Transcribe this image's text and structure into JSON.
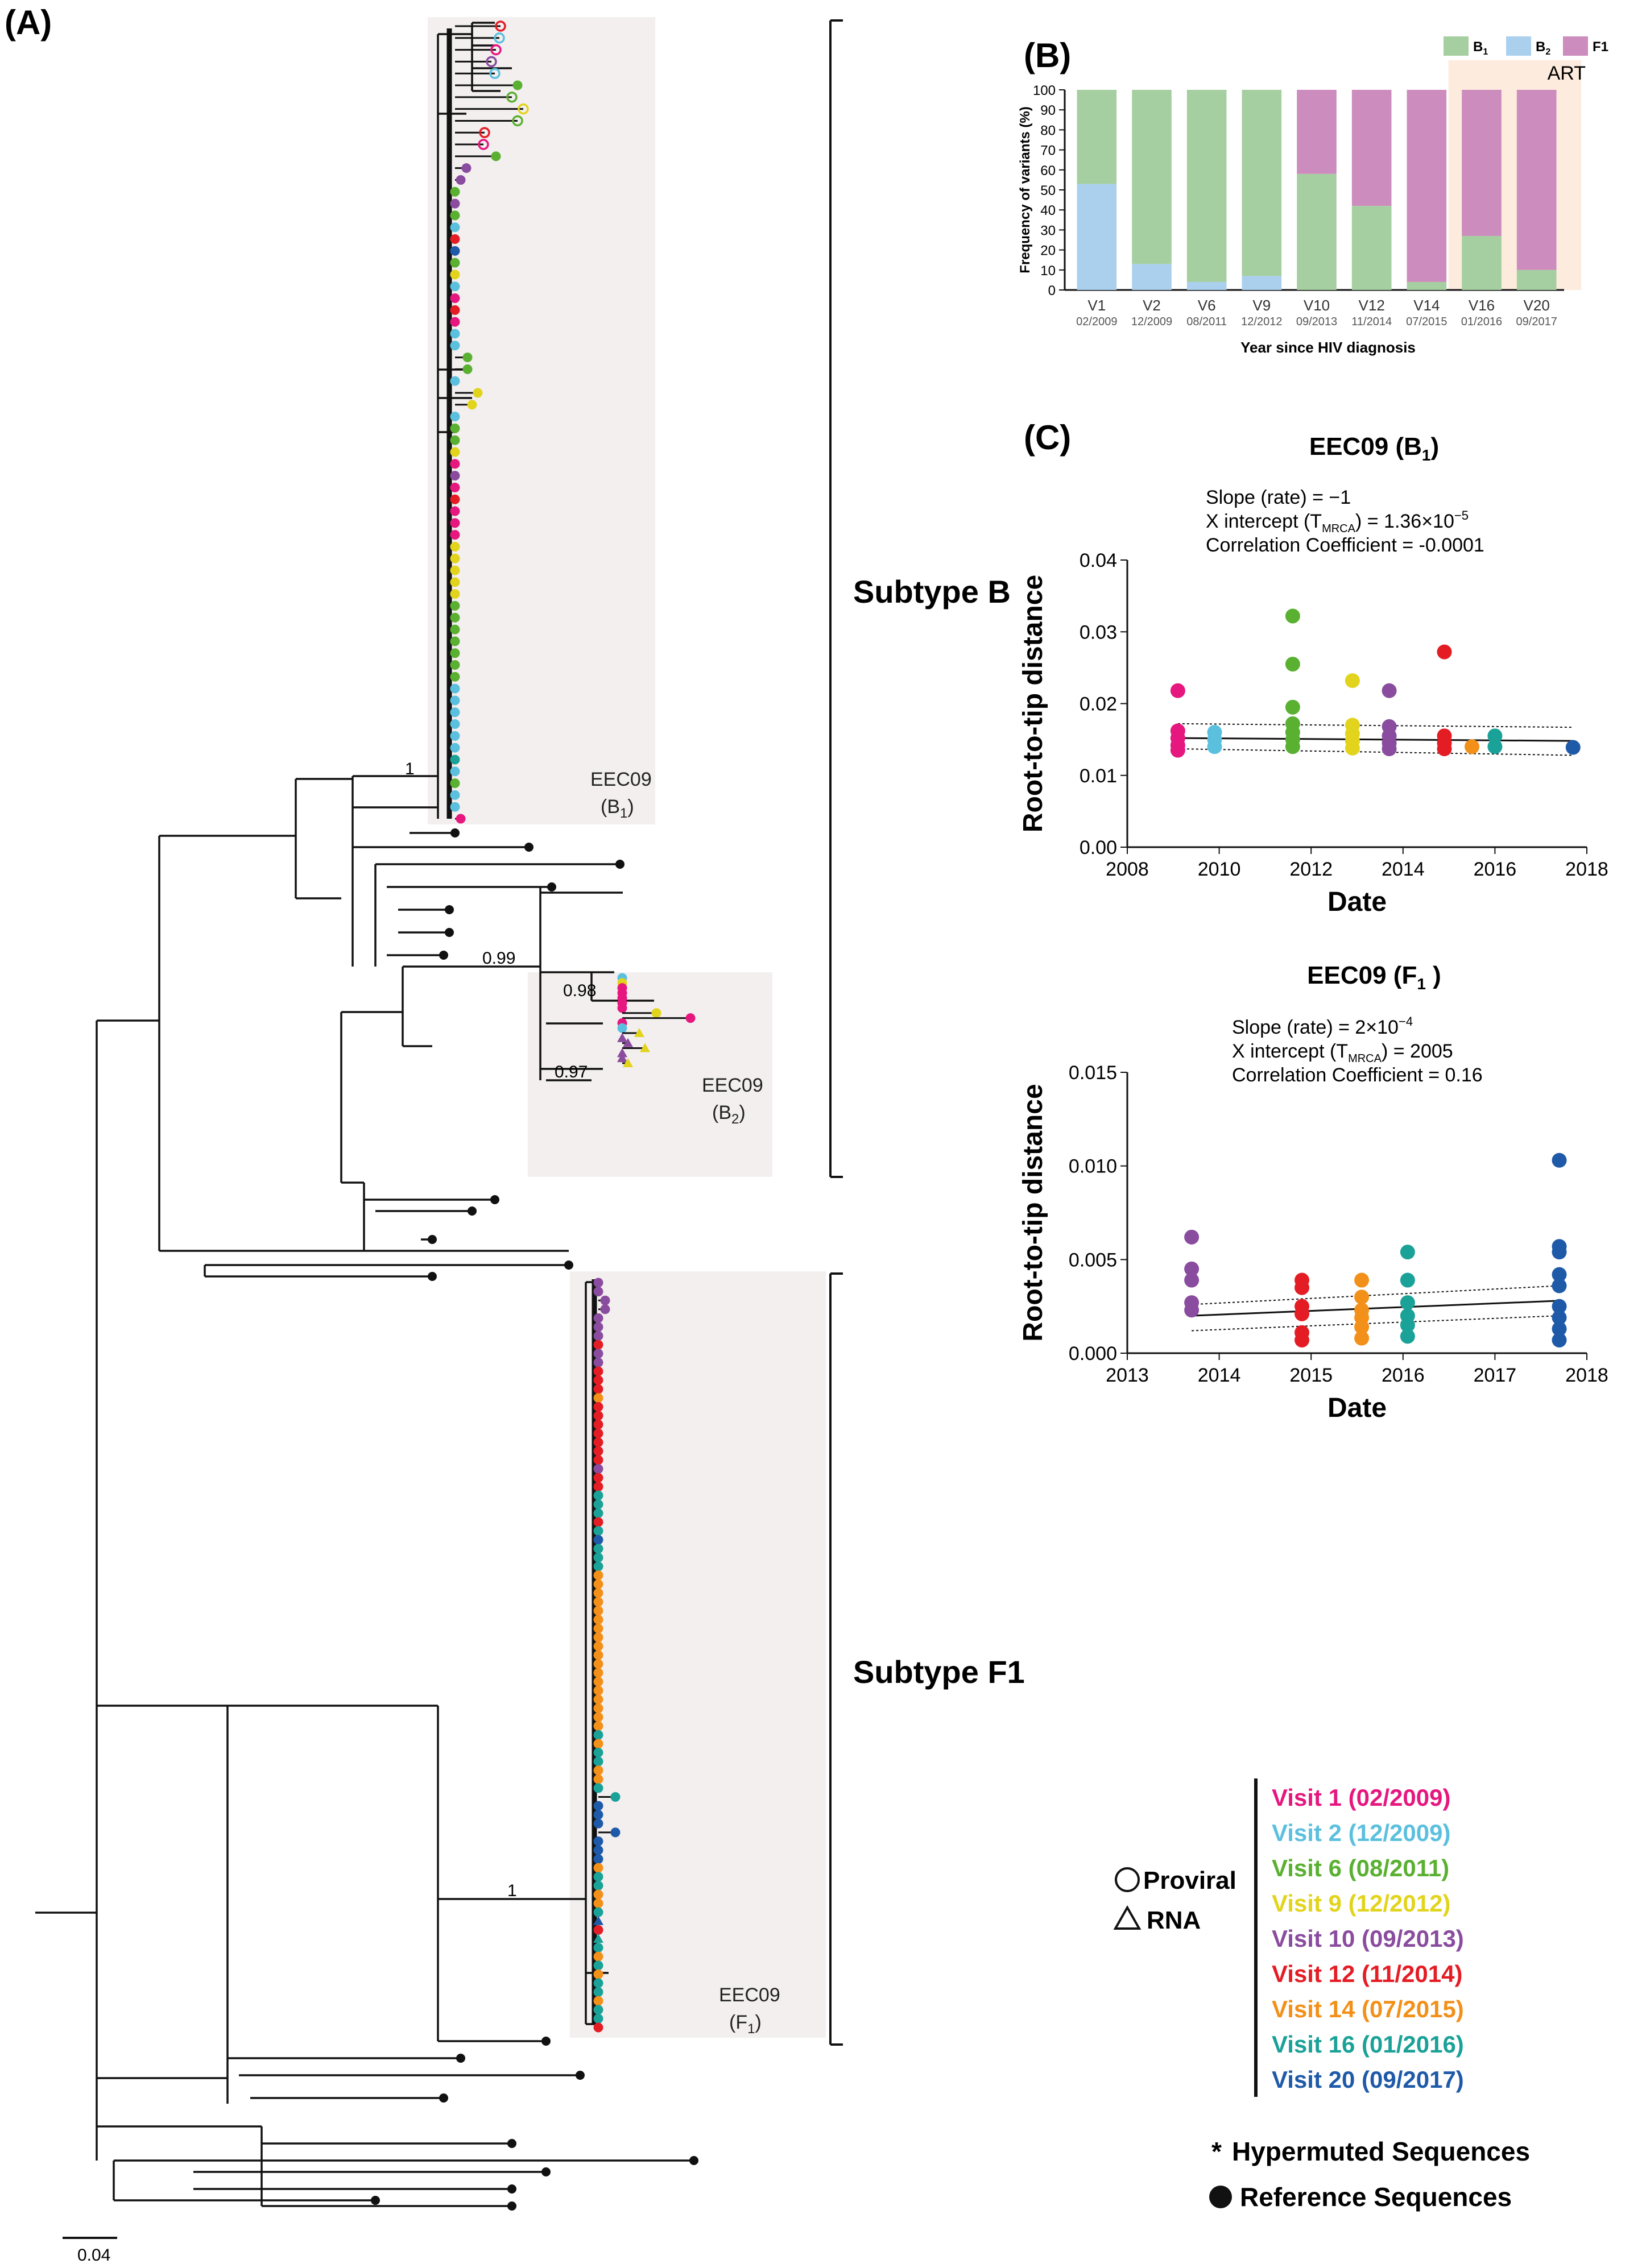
{
  "panels": {
    "a_label": "(A)",
    "b_label": "(B)",
    "c_label": "(C)"
  },
  "tree": {
    "subtype_b_label": "Subtype B",
    "subtype_f1_label": "Subtype F1",
    "clade_b1": {
      "name": "EEC09",
      "sub": "(B",
      "sub_index": "1",
      "close": ")"
    },
    "clade_b2": {
      "name": "EEC09",
      "sub": "(B",
      "sub_index": "2",
      "close": ")"
    },
    "clade_f1": {
      "name": "EEC09",
      "sub": "(F",
      "sub_index": "1",
      "close": ")"
    },
    "support_values": [
      "1",
      "0.99",
      "0.98",
      "0.97",
      "1"
    ],
    "scale_bar_label": "0.04"
  },
  "legend": {
    "proviral_label": "Proviral",
    "rna_label": "RNA",
    "hypermuted_label": "Hypermuted Sequences",
    "hypermuted_symbol": "*",
    "reference_label": "Reference Sequences",
    "visits": [
      {
        "label": "Visit 1 (02/2009)",
        "color": "#e6177f"
      },
      {
        "label": "Visit 2 (12/2009)",
        "color": "#5bc0de"
      },
      {
        "label": "Visit 6 (08/2011)",
        "color": "#5ab031"
      },
      {
        "label": "Visit 9 (12/2012)",
        "color": "#e2d41c"
      },
      {
        "label": "Visit 10 (09/2013)",
        "color": "#8a4c9e"
      },
      {
        "label": "Visit 12 (11/2014)",
        "color": "#e41d25"
      },
      {
        "label": "Visit 14 (07/2015)",
        "color": "#f29019"
      },
      {
        "label": "Visit 16 (01/2016)",
        "color": "#1aa198"
      },
      {
        "label": "Visit 20 (09/2017)",
        "color": "#1f5aa8"
      }
    ]
  },
  "chart_data": [
    {
      "type": "bar",
      "stacked": true,
      "ylabel": "Frequency of variants (%)",
      "xlabel": "Year since HIV diagnosis",
      "ylim": [
        0,
        100
      ],
      "yticks": [
        0,
        10,
        20,
        30,
        40,
        50,
        60,
        70,
        80,
        90,
        100
      ],
      "categories": [
        "V1",
        "V2",
        "V6",
        "V9",
        "V10",
        "V12",
        "V14",
        "V16",
        "V20"
      ],
      "category_dates": [
        "02/2009",
        "12/2009",
        "08/2011",
        "12/2012",
        "09/2013",
        "11/2014",
        "07/2015",
        "01/2016",
        "09/2017"
      ],
      "series": [
        {
          "name": "B",
          "sub": "2",
          "color": "#aad0ee",
          "values": [
            53,
            13,
            4,
            7,
            0,
            0,
            0,
            0,
            0
          ]
        },
        {
          "name": "B",
          "sub": "1",
          "color": "#a5cfa0",
          "values": [
            47,
            87,
            96,
            93,
            58,
            42,
            4,
            27,
            10
          ]
        },
        {
          "name": "F1",
          "sub": "",
          "color": "#cc8cbd",
          "values": [
            0,
            0,
            0,
            0,
            42,
            58,
            96,
            73,
            90
          ]
        }
      ],
      "legend_order": [
        "B1",
        "B2",
        "F1"
      ],
      "annotation": "ART",
      "annotation_color": "#fdebdd"
    },
    {
      "type": "scatter",
      "title": "EEC09 (B1)",
      "title_main": "EEC09 (B",
      "title_sub": "1",
      "title_close": ")",
      "xlabel": "Date",
      "ylabel": "Root-to-tip distance",
      "xlim": [
        2008,
        2018
      ],
      "ylim": [
        0,
        0.04
      ],
      "xticks": [
        "2008",
        "2010",
        "2012",
        "2014",
        "2016",
        "2018"
      ],
      "yticks": [
        "0.00",
        "0.01",
        "0.02",
        "0.03",
        "0.04"
      ],
      "stats": {
        "slope_line": "Slope (rate) =  −1",
        "xint_prefix": "X intercept (T",
        "xint_sub": "MRCA",
        "xint_suffix": ") = 1.36×10",
        "xint_exp": "−5",
        "corr_line": "Correlation Coefficient = -0.0001"
      },
      "regression": {
        "x0": 2009.1,
        "y0": 0.0152,
        "x1": 2017.7,
        "y1": 0.0148
      },
      "ci_upper": {
        "x0": 2009.1,
        "y0": 0.0172,
        "x1": 2017.7,
        "y1": 0.0167
      },
      "ci_lower": {
        "x0": 2009.1,
        "y0": 0.0137,
        "x1": 2017.7,
        "y1": 0.0128
      },
      "points": [
        {
          "x": 2009.1,
          "y": 0.0218,
          "visit": 0
        },
        {
          "x": 2009.1,
          "y": 0.0162,
          "visit": 0
        },
        {
          "x": 2009.1,
          "y": 0.0152,
          "visit": 0
        },
        {
          "x": 2009.1,
          "y": 0.0142,
          "visit": 0
        },
        {
          "x": 2009.1,
          "y": 0.0135,
          "visit": 0
        },
        {
          "x": 2009.9,
          "y": 0.016,
          "visit": 1
        },
        {
          "x": 2009.9,
          "y": 0.015,
          "visit": 1
        },
        {
          "x": 2009.9,
          "y": 0.014,
          "visit": 1
        },
        {
          "x": 2011.6,
          "y": 0.0322,
          "visit": 2
        },
        {
          "x": 2011.6,
          "y": 0.0255,
          "visit": 2
        },
        {
          "x": 2011.6,
          "y": 0.0195,
          "visit": 2
        },
        {
          "x": 2011.6,
          "y": 0.0172,
          "visit": 2
        },
        {
          "x": 2011.6,
          "y": 0.016,
          "visit": 2
        },
        {
          "x": 2011.6,
          "y": 0.015,
          "visit": 2
        },
        {
          "x": 2011.6,
          "y": 0.014,
          "visit": 2
        },
        {
          "x": 2012.9,
          "y": 0.0232,
          "visit": 3
        },
        {
          "x": 2012.9,
          "y": 0.017,
          "visit": 3
        },
        {
          "x": 2012.9,
          "y": 0.0158,
          "visit": 3
        },
        {
          "x": 2012.9,
          "y": 0.0148,
          "visit": 3
        },
        {
          "x": 2012.9,
          "y": 0.0138,
          "visit": 3
        },
        {
          "x": 2013.7,
          "y": 0.0218,
          "visit": 4
        },
        {
          "x": 2013.7,
          "y": 0.0168,
          "visit": 4
        },
        {
          "x": 2013.7,
          "y": 0.0155,
          "visit": 4
        },
        {
          "x": 2013.7,
          "y": 0.0145,
          "visit": 4
        },
        {
          "x": 2013.7,
          "y": 0.0137,
          "visit": 4
        },
        {
          "x": 2014.9,
          "y": 0.0272,
          "visit": 5
        },
        {
          "x": 2014.9,
          "y": 0.0155,
          "visit": 5
        },
        {
          "x": 2014.9,
          "y": 0.0145,
          "visit": 5
        },
        {
          "x": 2014.9,
          "y": 0.0137,
          "visit": 5
        },
        {
          "x": 2015.5,
          "y": 0.014,
          "visit": 6
        },
        {
          "x": 2016.0,
          "y": 0.0155,
          "visit": 7
        },
        {
          "x": 2016.0,
          "y": 0.014,
          "visit": 7
        },
        {
          "x": 2017.7,
          "y": 0.0139,
          "visit": 8
        }
      ]
    },
    {
      "type": "scatter",
      "title": "EEC09 (F1)",
      "title_main": "EEC09 (F",
      "title_sub": "1",
      "title_close": " )",
      "xlabel": "Date",
      "ylabel": "Root-to-tip distance",
      "xlim": [
        2013,
        2018
      ],
      "ylim": [
        0,
        0.015
      ],
      "xticks": [
        "2013",
        "2014",
        "2015",
        "2016",
        "2017",
        "2018"
      ],
      "yticks": [
        "0.000",
        "0.005",
        "0.010",
        "0.015"
      ],
      "stats": {
        "slope_prefix": "Slope (rate) = 2×10",
        "slope_exp": "−4",
        "xint_prefix": "X intercept (T",
        "xint_sub": "MRCA",
        "xint_suffix": ") = 2005",
        "corr_line": "Correlation Coefficient = 0.16"
      },
      "regression": {
        "x0": 2013.7,
        "y0": 0.002,
        "x1": 2017.7,
        "y1": 0.0028
      },
      "ci_upper": {
        "x0": 2013.7,
        "y0": 0.0026,
        "x1": 2017.7,
        "y1": 0.0036
      },
      "ci_lower": {
        "x0": 2013.7,
        "y0": 0.0012,
        "x1": 2017.7,
        "y1": 0.002
      },
      "points": [
        {
          "x": 2013.7,
          "y": 0.0062,
          "visit": 4
        },
        {
          "x": 2013.7,
          "y": 0.0045,
          "visit": 4
        },
        {
          "x": 2013.7,
          "y": 0.0039,
          "visit": 4
        },
        {
          "x": 2013.7,
          "y": 0.0027,
          "visit": 4
        },
        {
          "x": 2013.7,
          "y": 0.0023,
          "visit": 4
        },
        {
          "x": 2014.9,
          "y": 0.0039,
          "visit": 5
        },
        {
          "x": 2014.9,
          "y": 0.0035,
          "visit": 5
        },
        {
          "x": 2014.9,
          "y": 0.0025,
          "visit": 5
        },
        {
          "x": 2014.9,
          "y": 0.0021,
          "visit": 5
        },
        {
          "x": 2014.9,
          "y": 0.0011,
          "visit": 5
        },
        {
          "x": 2014.9,
          "y": 0.0007,
          "visit": 5
        },
        {
          "x": 2015.55,
          "y": 0.0039,
          "visit": 6
        },
        {
          "x": 2015.55,
          "y": 0.003,
          "visit": 6
        },
        {
          "x": 2015.55,
          "y": 0.0023,
          "visit": 6
        },
        {
          "x": 2015.55,
          "y": 0.0019,
          "visit": 6
        },
        {
          "x": 2015.55,
          "y": 0.0014,
          "visit": 6
        },
        {
          "x": 2015.55,
          "y": 0.0008,
          "visit": 6
        },
        {
          "x": 2016.05,
          "y": 0.0054,
          "visit": 7
        },
        {
          "x": 2016.05,
          "y": 0.0039,
          "visit": 7
        },
        {
          "x": 2016.05,
          "y": 0.0027,
          "visit": 7
        },
        {
          "x": 2016.05,
          "y": 0.002,
          "visit": 7
        },
        {
          "x": 2016.05,
          "y": 0.0015,
          "visit": 7
        },
        {
          "x": 2016.05,
          "y": 0.0009,
          "visit": 7
        },
        {
          "x": 2017.7,
          "y": 0.0103,
          "visit": 8
        },
        {
          "x": 2017.7,
          "y": 0.0057,
          "visit": 8
        },
        {
          "x": 2017.7,
          "y": 0.0054,
          "visit": 8
        },
        {
          "x": 2017.7,
          "y": 0.0042,
          "visit": 8
        },
        {
          "x": 2017.7,
          "y": 0.0036,
          "visit": 8
        },
        {
          "x": 2017.7,
          "y": 0.0025,
          "visit": 8
        },
        {
          "x": 2017.7,
          "y": 0.0019,
          "visit": 8
        },
        {
          "x": 2017.7,
          "y": 0.0013,
          "visit": 8
        },
        {
          "x": 2017.7,
          "y": 0.0007,
          "visit": 8
        }
      ]
    }
  ]
}
